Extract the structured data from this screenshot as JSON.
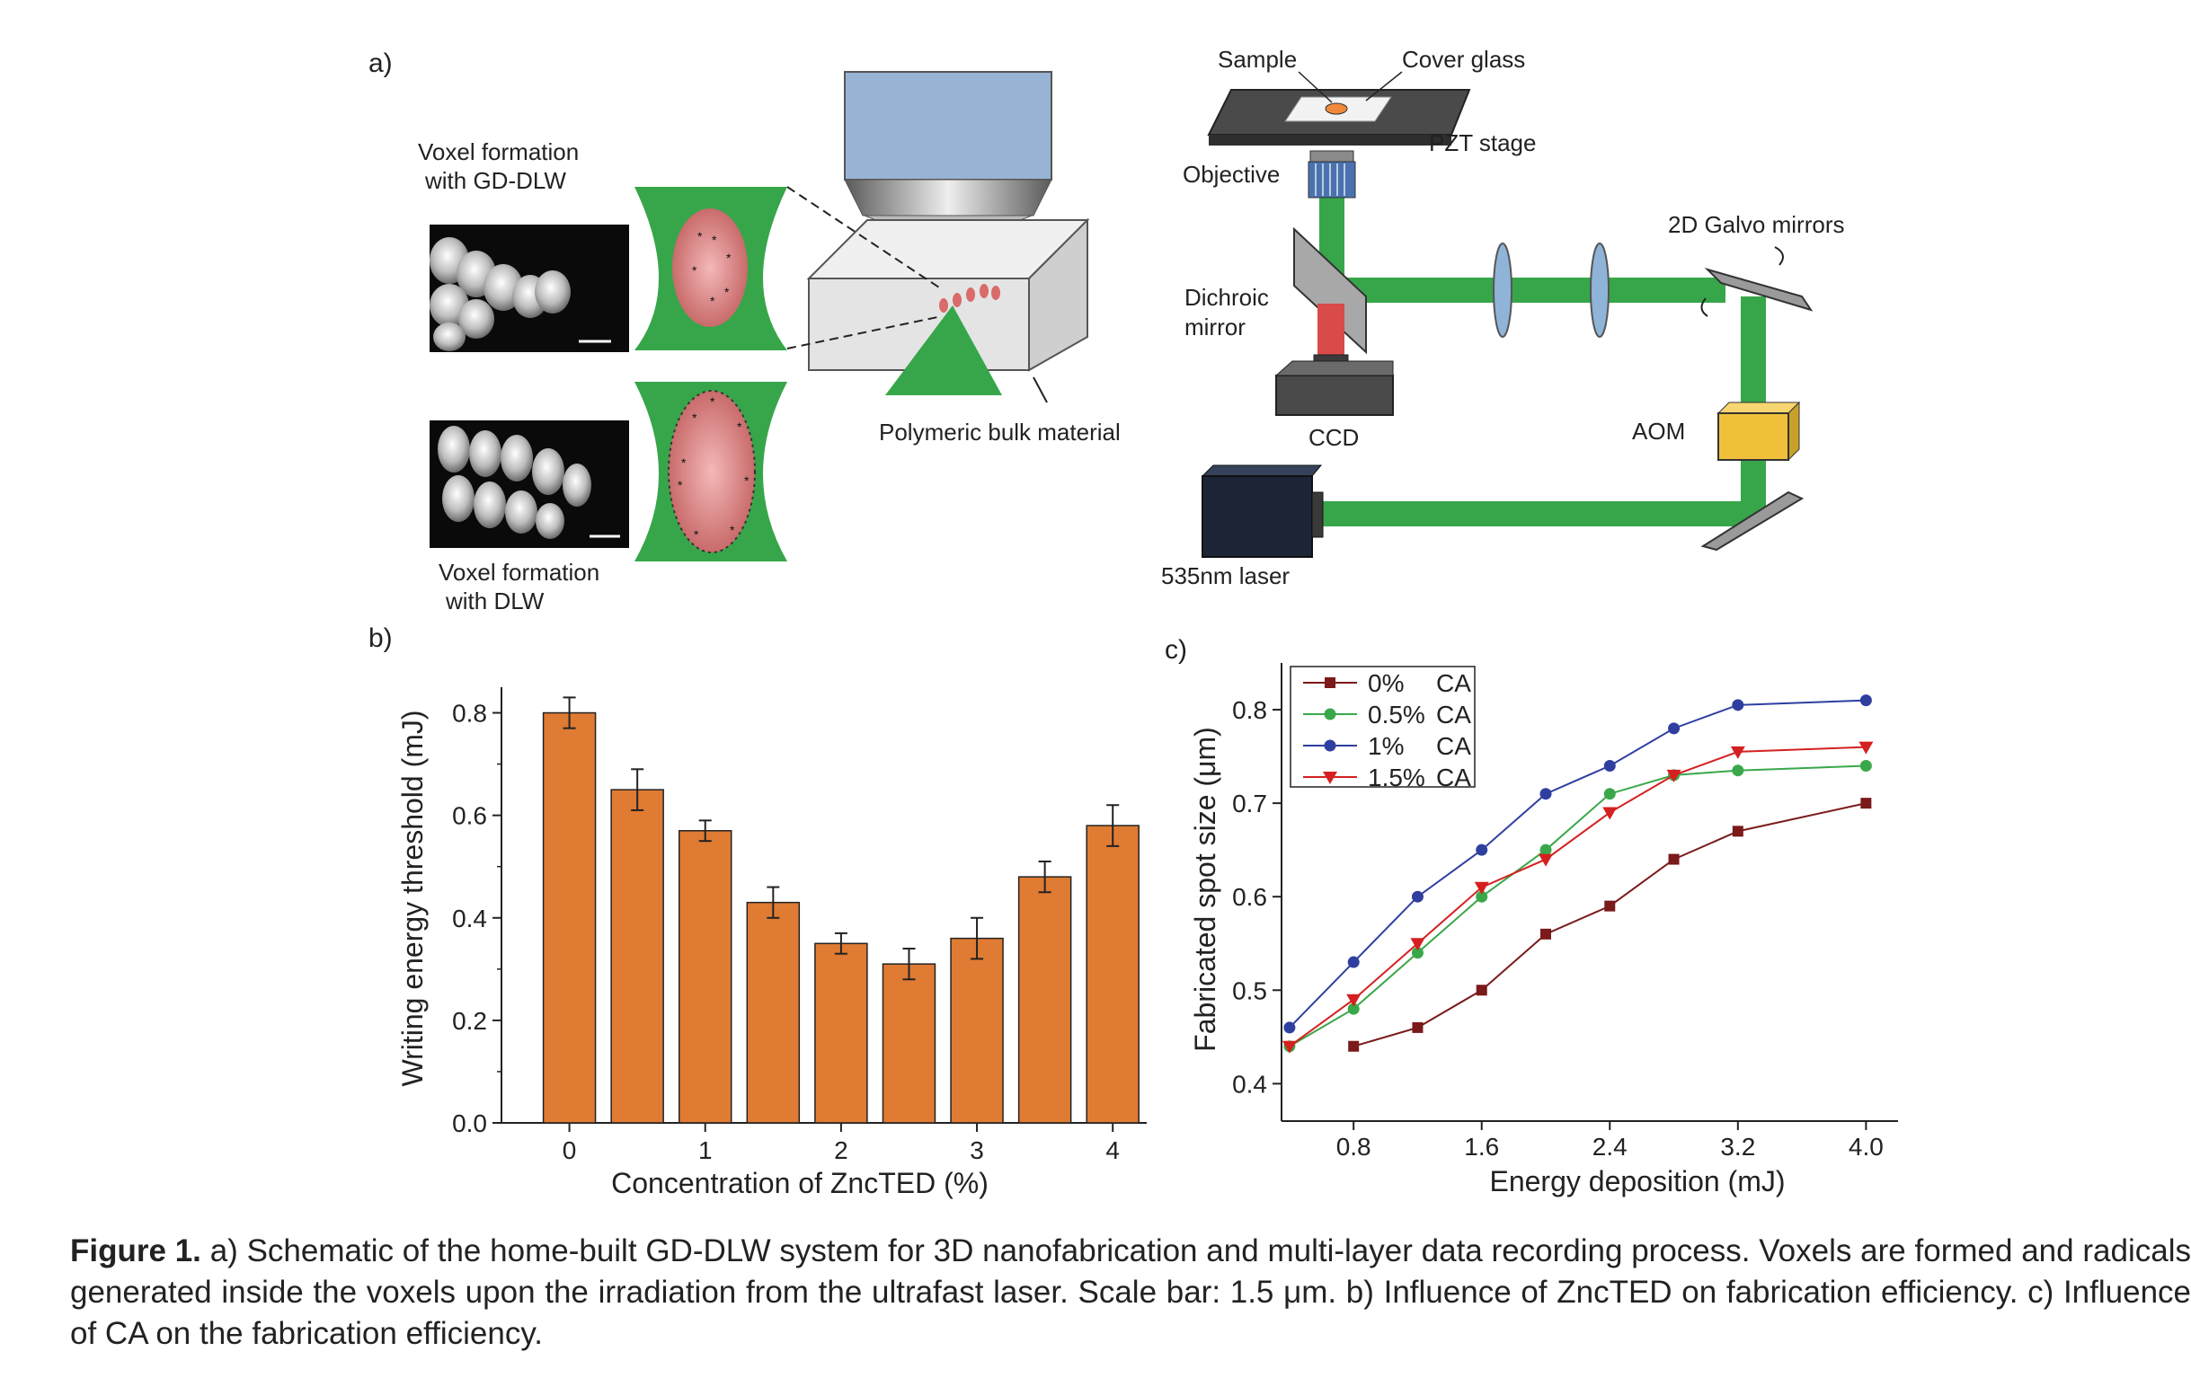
{
  "panel_labels": {
    "a": "a)",
    "b": "b)",
    "c": "c)"
  },
  "schematic_left": {
    "gd_title_1": "Voxel formation",
    "gd_title_2": "with GD-DLW",
    "dlw_title_1": "Voxel formation",
    "dlw_title_2": "with DLW",
    "bulk_label": "Polymeric bulk material"
  },
  "setup": {
    "sample": "Sample",
    "cover_glass": "Cover glass",
    "pzt_stage": "PZT stage",
    "objective": "Objective",
    "galvo": "2D Galvo mirrors",
    "dichroic_1": "Dichroic",
    "dichroic_2": "mirror",
    "ccd": "CCD",
    "aom": "AOM",
    "laser": "535nm laser"
  },
  "colors": {
    "beam": "#3aaa45",
    "bar": "#e07b33",
    "stage": "#4a4a4a",
    "aom": "#f0c03a",
    "laser_box": "#1c2535",
    "ccd_beam": "#d94a4a"
  },
  "chart_data": [
    {
      "type": "bar",
      "xlabel": "Concentration of ZncTED (%)",
      "ylabel": "Writing energy threshold (mJ)",
      "x": [
        0,
        0.5,
        1,
        1.5,
        2,
        2.5,
        3,
        3.5,
        4
      ],
      "values": [
        0.8,
        0.65,
        0.57,
        0.43,
        0.35,
        0.31,
        0.36,
        0.48,
        0.58
      ],
      "errors": [
        0.03,
        0.04,
        0.02,
        0.03,
        0.02,
        0.03,
        0.04,
        0.03,
        0.04
      ],
      "xticks": [
        "0",
        "1",
        "2",
        "3",
        "4"
      ],
      "yticks": [
        "0.0",
        "0.2",
        "0.4",
        "0.6",
        "0.8"
      ],
      "ylim": [
        0,
        0.85
      ]
    },
    {
      "type": "line",
      "xlabel": "Energy deposition (mJ)",
      "ylabel": "Fabricated spot size (μm)",
      "xticks": [
        "0.8",
        "1.6",
        "2.4",
        "3.2",
        "4.0"
      ],
      "yticks": [
        "0.4",
        "0.5",
        "0.6",
        "0.7",
        "0.8"
      ],
      "xlim": [
        0.35,
        4.2
      ],
      "ylim": [
        0.36,
        0.85
      ],
      "legend_position": "top-left",
      "series": [
        {
          "name": "0%",
          "name_suffix": "CA",
          "color": "#7a1a1a",
          "marker": "square",
          "x": [
            0.8,
            1.2,
            1.6,
            2.0,
            2.4,
            2.8,
            3.2,
            4.0
          ],
          "y": [
            0.44,
            0.46,
            0.5,
            0.56,
            0.59,
            0.64,
            0.67,
            0.7
          ]
        },
        {
          "name": "0.5%",
          "name_suffix": "CA",
          "color": "#3aa84a",
          "marker": "circle",
          "x": [
            0.4,
            0.8,
            1.2,
            1.6,
            2.0,
            2.4,
            2.8,
            3.2,
            4.0
          ],
          "y": [
            0.44,
            0.48,
            0.54,
            0.6,
            0.65,
            0.71,
            0.73,
            0.735,
            0.74
          ]
        },
        {
          "name": "1%",
          "name_suffix": "CA",
          "color": "#2f3fa0",
          "marker": "circle",
          "x": [
            0.4,
            0.8,
            1.2,
            1.6,
            2.0,
            2.4,
            2.8,
            3.2,
            4.0
          ],
          "y": [
            0.46,
            0.53,
            0.6,
            0.65,
            0.71,
            0.74,
            0.78,
            0.805,
            0.81
          ]
        },
        {
          "name": "1.5%",
          "name_suffix": "CA",
          "color": "#d42020",
          "marker": "triangle-down",
          "x": [
            0.4,
            0.8,
            1.2,
            1.6,
            2.0,
            2.4,
            2.8,
            3.2,
            4.0
          ],
          "y": [
            0.44,
            0.49,
            0.55,
            0.61,
            0.64,
            0.69,
            0.73,
            0.755,
            0.76
          ]
        }
      ]
    }
  ],
  "caption": {
    "label": "Figure 1.",
    "text": " a) Schematic of the home-built GD-DLW system for 3D nanofabrication and multi-layer data recording process. Voxels are formed and radicals generated inside the voxels upon the irradiation from the ultrafast laser. Scale bar: 1.5 μm. b) Influence of ZncTED on fabrication efficiency. c) Influence of CA on the fabrication efficiency."
  }
}
